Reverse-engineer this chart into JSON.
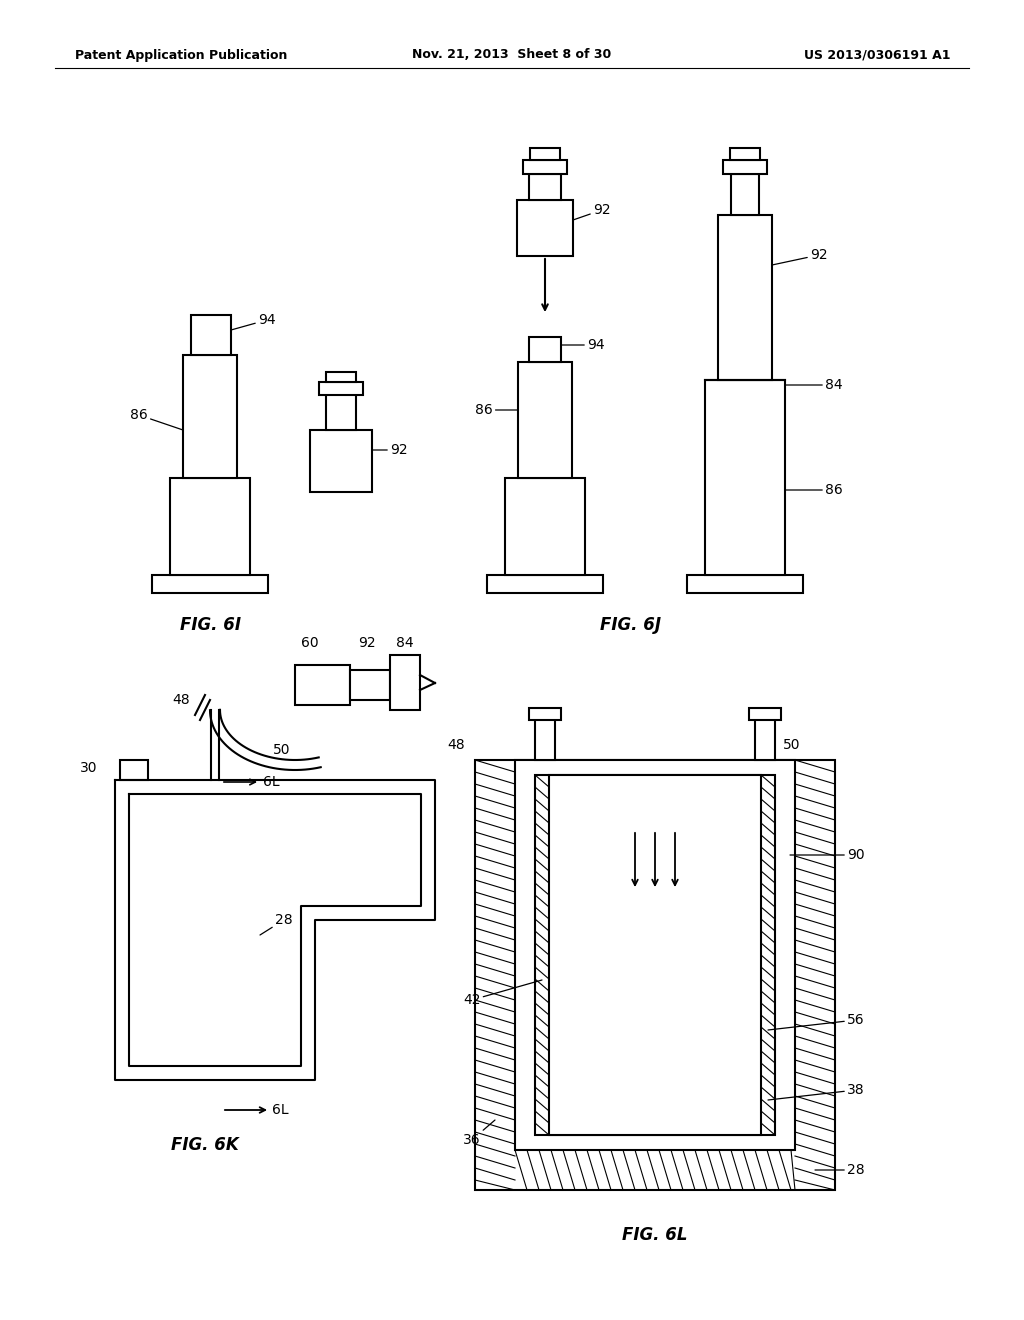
{
  "bg_color": "#ffffff",
  "line_color": "#000000",
  "header_left": "Patent Application Publication",
  "header_center": "Nov. 21, 2013  Sheet 8 of 30",
  "header_right": "US 2013/0306191 A1"
}
